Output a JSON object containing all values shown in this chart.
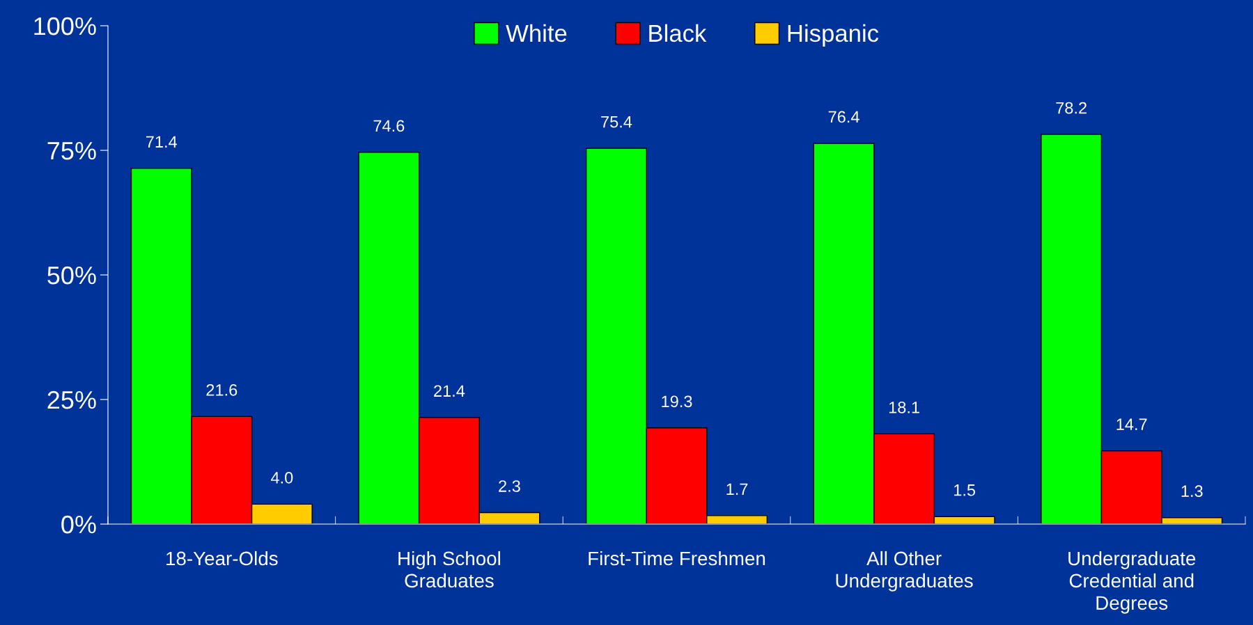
{
  "chart_data": {
    "type": "bar",
    "categories": [
      "18-Year-Olds",
      "High School\nGraduates",
      "First-Time Freshmen",
      "All Other\nUndergraduates",
      "Undergraduate\nCredential and\nDegrees"
    ],
    "series": [
      {
        "name": "White",
        "color": "#00ff00",
        "values": [
          71.4,
          74.6,
          75.4,
          76.4,
          78.2
        ],
        "value_labels": [
          "71.4",
          "74.6",
          "75.4",
          "76.4",
          "78.2"
        ]
      },
      {
        "name": "Black",
        "color": "#ff0000",
        "values": [
          21.6,
          21.4,
          19.3,
          18.1,
          14.7
        ],
        "value_labels": [
          "21.6",
          "21.4",
          "19.3",
          "18.1",
          "14.7"
        ]
      },
      {
        "name": "Hispanic",
        "color": "#ffcc00",
        "values": [
          4.0,
          2.3,
          1.7,
          1.5,
          1.3
        ],
        "value_labels": [
          "4.0",
          "2.3",
          "1.7",
          "1.5",
          "1.3"
        ]
      }
    ],
    "ylim": [
      0,
      100
    ],
    "yticks": [
      {
        "value": 0,
        "label": "0%"
      },
      {
        "value": 25,
        "label": "25%"
      },
      {
        "value": 50,
        "label": "50%"
      },
      {
        "value": 75,
        "label": "75%"
      },
      {
        "value": 100,
        "label": "100%"
      }
    ],
    "legend": "top",
    "grid": false
  }
}
